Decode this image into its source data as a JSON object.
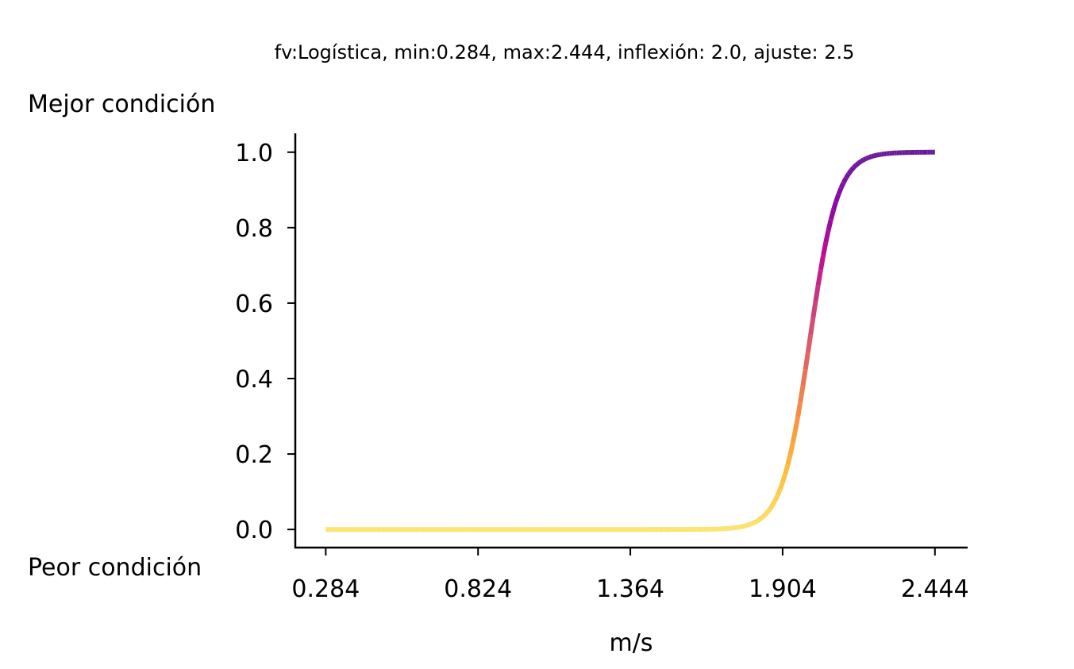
{
  "chart_data": {
    "type": "line",
    "title": "fv:Logística, min:0.284, max:2.444, inflexión: 2.0, ajuste: 2.5",
    "xlabel": "m/s",
    "ylabel_top": "Mejor condición",
    "ylabel_bottom": "Peor condición",
    "function": "logistic",
    "x_min": 0.284,
    "x_max": 2.444,
    "inflection": 2.0,
    "slope": 2.5,
    "xlim": [
      0.176,
      2.56
    ],
    "ylim": [
      -0.048,
      1.05
    ],
    "x_ticks": [
      0.284,
      0.824,
      1.364,
      1.904,
      2.444
    ],
    "x_tick_labels": [
      "0.284",
      "0.824",
      "1.364",
      "1.904",
      "2.444"
    ],
    "y_ticks": [
      0.0,
      0.2,
      0.4,
      0.6,
      0.8,
      1.0
    ],
    "y_tick_labels": [
      "0.0",
      "0.2",
      "0.4",
      "0.6",
      "0.8",
      "1.0"
    ],
    "colormap": "plasma_r",
    "color_stops": [
      "#fbe470",
      "#fdc13d",
      "#f89540",
      "#e66c5c",
      "#cc4778",
      "#c0118f",
      "#8b0aa5",
      "#6a1b9a"
    ],
    "grid": false
  }
}
